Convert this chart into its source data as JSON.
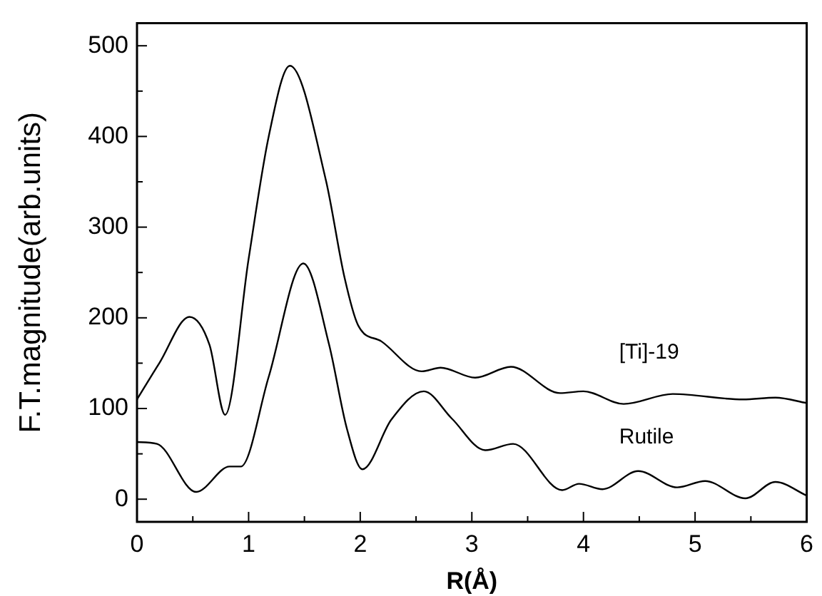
{
  "chart_data": {
    "type": "line",
    "xlabel": "R(Å)",
    "ylabel": "F.T.magnitude(arb.units)",
    "xlim": [
      0,
      6
    ],
    "ylim": [
      -25,
      525
    ],
    "xticks": [
      0,
      {
        "value": 0.5,
        "label": null
      },
      1,
      {
        "value": 1.5,
        "label": null
      },
      2,
      {
        "value": 2.5,
        "label": null
      },
      3,
      {
        "value": 3.5,
        "label": null
      },
      4,
      {
        "value": 4.5,
        "label": null
      },
      5,
      {
        "value": 5.5,
        "label": null
      },
      6
    ],
    "yticks": [
      0,
      {
        "value": 50,
        "label": null
      },
      100,
      {
        "value": 150,
        "label": null
      },
      200,
      {
        "value": 250,
        "label": null
      },
      300,
      {
        "value": 350,
        "label": null
      },
      400,
      {
        "value": 450,
        "label": null
      },
      500
    ],
    "grid": false,
    "legend": false,
    "marker": "none",
    "line_style": "solid",
    "series": [
      {
        "name": "[Ti]-19",
        "color": "#000000",
        "x": [
          0,
          0.2,
          0.47,
          0.65,
          0.79,
          1.0,
          1.18,
          1.37,
          1.69,
          1.86,
          1.98,
          2.19,
          2.55,
          2.72,
          3.03,
          3.35,
          3.79,
          4.0,
          4.36,
          4.8,
          5.43,
          5.72,
          6.0
        ],
        "values": [
          110,
          150,
          201,
          170,
          93,
          265,
          400,
          478,
          353,
          244,
          192,
          174,
          141,
          145,
          134,
          146,
          117,
          119,
          105,
          116,
          110,
          112,
          106
        ]
      },
      {
        "name": "Rutile",
        "color": "#000000",
        "x": [
          0,
          0.18,
          0.53,
          0.83,
          0.93,
          1.18,
          1.49,
          1.72,
          1.88,
          2.02,
          2.28,
          2.57,
          2.82,
          3.12,
          3.37,
          3.81,
          3.96,
          4.17,
          4.49,
          4.84,
          5.09,
          5.45,
          5.72,
          6.0
        ],
        "values": [
          63,
          61,
          8,
          36,
          36,
          135,
          260,
          171,
          78,
          33,
          88,
          119,
          89,
          54,
          61,
          10,
          17,
          11,
          31,
          13,
          20,
          1,
          19,
          4
        ]
      }
    ]
  }
}
